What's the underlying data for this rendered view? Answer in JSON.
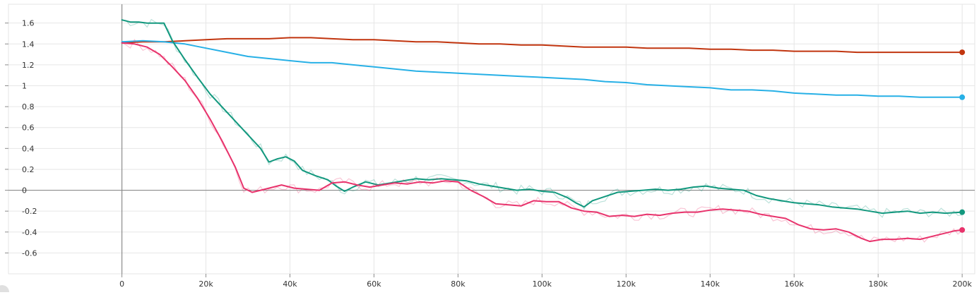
{
  "chart_data": {
    "type": "line",
    "title": "",
    "xlabel": "",
    "ylabel": "",
    "xlim": [
      -27000,
      203000
    ],
    "ylim": [
      -0.8,
      1.78
    ],
    "x_ticks": [
      0,
      20000,
      40000,
      60000,
      80000,
      100000,
      120000,
      140000,
      160000,
      180000,
      200000
    ],
    "x_tick_labels": [
      "0",
      "20k",
      "40k",
      "60k",
      "80k",
      "100k",
      "120k",
      "140k",
      "160k",
      "180k",
      "200k"
    ],
    "y_ticks": [
      1.6,
      1.4,
      1.2,
      1,
      0.8,
      0.6,
      0.4,
      0.2,
      0,
      -0.2,
      -0.4,
      -0.6
    ],
    "y_tick_labels": [
      "1.6",
      "1.4",
      "1.2",
      "1",
      "0.8",
      "0.6",
      "0.4",
      "0.2",
      "0",
      "-0.2",
      "-0.4",
      "-0.6"
    ],
    "grid": true,
    "legend": "none",
    "series": [
      {
        "color": "#c1350f",
        "raw": false,
        "points": [
          [
            0,
            1.41
          ],
          [
            5000,
            1.42
          ],
          [
            10000,
            1.42
          ],
          [
            15000,
            1.43
          ],
          [
            20000,
            1.44
          ],
          [
            25000,
            1.45
          ],
          [
            30000,
            1.45
          ],
          [
            35000,
            1.45
          ],
          [
            40000,
            1.46
          ],
          [
            45000,
            1.46
          ],
          [
            50000,
            1.45
          ],
          [
            55000,
            1.44
          ],
          [
            60000,
            1.44
          ],
          [
            65000,
            1.43
          ],
          [
            70000,
            1.42
          ],
          [
            75000,
            1.42
          ],
          [
            80000,
            1.41
          ],
          [
            85000,
            1.4
          ],
          [
            90000,
            1.4
          ],
          [
            95000,
            1.39
          ],
          [
            100000,
            1.39
          ],
          [
            105000,
            1.38
          ],
          [
            110000,
            1.37
          ],
          [
            115000,
            1.37
          ],
          [
            120000,
            1.37
          ],
          [
            125000,
            1.36
          ],
          [
            130000,
            1.36
          ],
          [
            135000,
            1.36
          ],
          [
            140000,
            1.35
          ],
          [
            145000,
            1.35
          ],
          [
            150000,
            1.34
          ],
          [
            155000,
            1.34
          ],
          [
            160000,
            1.33
          ],
          [
            165000,
            1.33
          ],
          [
            170000,
            1.33
          ],
          [
            175000,
            1.32
          ],
          [
            180000,
            1.32
          ],
          [
            185000,
            1.32
          ],
          [
            190000,
            1.32
          ],
          [
            195000,
            1.32
          ],
          [
            200000,
            1.32
          ]
        ]
      },
      {
        "color": "#27b0e6",
        "raw": false,
        "points": [
          [
            0,
            1.42
          ],
          [
            5000,
            1.43
          ],
          [
            10000,
            1.42
          ],
          [
            15000,
            1.4
          ],
          [
            20000,
            1.36
          ],
          [
            25000,
            1.32
          ],
          [
            30000,
            1.28
          ],
          [
            35000,
            1.26
          ],
          [
            40000,
            1.24
          ],
          [
            45000,
            1.22
          ],
          [
            50000,
            1.22
          ],
          [
            55000,
            1.2
          ],
          [
            60000,
            1.18
          ],
          [
            65000,
            1.16
          ],
          [
            70000,
            1.14
          ],
          [
            75000,
            1.13
          ],
          [
            80000,
            1.12
          ],
          [
            85000,
            1.11
          ],
          [
            90000,
            1.1
          ],
          [
            95000,
            1.09
          ],
          [
            100000,
            1.08
          ],
          [
            105000,
            1.07
          ],
          [
            110000,
            1.06
          ],
          [
            115000,
            1.04
          ],
          [
            120000,
            1.03
          ],
          [
            125000,
            1.01
          ],
          [
            130000,
            1.0
          ],
          [
            135000,
            0.99
          ],
          [
            140000,
            0.98
          ],
          [
            145000,
            0.96
          ],
          [
            150000,
            0.96
          ],
          [
            155000,
            0.95
          ],
          [
            160000,
            0.93
          ],
          [
            165000,
            0.92
          ],
          [
            170000,
            0.91
          ],
          [
            175000,
            0.91
          ],
          [
            180000,
            0.9
          ],
          [
            185000,
            0.9
          ],
          [
            190000,
            0.89
          ],
          [
            195000,
            0.89
          ],
          [
            200000,
            0.89
          ]
        ]
      },
      {
        "color": "#12987e",
        "raw": true,
        "points": [
          [
            0,
            1.63
          ],
          [
            2000,
            1.61
          ],
          [
            4000,
            1.61
          ],
          [
            6000,
            1.6
          ],
          [
            8000,
            1.6
          ],
          [
            10000,
            1.6
          ],
          [
            12000,
            1.43
          ],
          [
            15000,
            1.25
          ],
          [
            18000,
            1.08
          ],
          [
            21000,
            0.92
          ],
          [
            24000,
            0.79
          ],
          [
            27000,
            0.66
          ],
          [
            30000,
            0.53
          ],
          [
            33000,
            0.4
          ],
          [
            35000,
            0.27
          ],
          [
            37000,
            0.3
          ],
          [
            39000,
            0.32
          ],
          [
            41000,
            0.28
          ],
          [
            43000,
            0.19
          ],
          [
            46000,
            0.14
          ],
          [
            49000,
            0.1
          ],
          [
            51000,
            0.04
          ],
          [
            53000,
            -0.01
          ],
          [
            55000,
            0.03
          ],
          [
            58000,
            0.08
          ],
          [
            61000,
            0.05
          ],
          [
            64000,
            0.07
          ],
          [
            67000,
            0.09
          ],
          [
            70000,
            0.11
          ],
          [
            73000,
            0.1
          ],
          [
            76000,
            0.11
          ],
          [
            79000,
            0.1
          ],
          [
            82000,
            0.09
          ],
          [
            85000,
            0.06
          ],
          [
            88000,
            0.04
          ],
          [
            91000,
            0.02
          ],
          [
            94000,
            0.0
          ],
          [
            97000,
            0.01
          ],
          [
            100000,
            -0.01
          ],
          [
            103000,
            -0.02
          ],
          [
            106000,
            -0.07
          ],
          [
            108000,
            -0.12
          ],
          [
            110000,
            -0.16
          ],
          [
            112000,
            -0.1
          ],
          [
            115000,
            -0.06
          ],
          [
            118000,
            -0.02
          ],
          [
            121000,
            -0.01
          ],
          [
            124000,
            0.0
          ],
          [
            127000,
            0.01
          ],
          [
            130000,
            0.0
          ],
          [
            133000,
            0.01
          ],
          [
            136000,
            0.03
          ],
          [
            139000,
            0.04
          ],
          [
            142000,
            0.02
          ],
          [
            145000,
            0.01
          ],
          [
            148000,
            0.0
          ],
          [
            151000,
            -0.05
          ],
          [
            154000,
            -0.08
          ],
          [
            157000,
            -0.1
          ],
          [
            160000,
            -0.12
          ],
          [
            163000,
            -0.13
          ],
          [
            166000,
            -0.14
          ],
          [
            169000,
            -0.16
          ],
          [
            172000,
            -0.17
          ],
          [
            175000,
            -0.18
          ],
          [
            178000,
            -0.2
          ],
          [
            181000,
            -0.22
          ],
          [
            184000,
            -0.21
          ],
          [
            187000,
            -0.2
          ],
          [
            190000,
            -0.22
          ],
          [
            193000,
            -0.21
          ],
          [
            196000,
            -0.22
          ],
          [
            200000,
            -0.21
          ]
        ]
      },
      {
        "color": "#e8336c",
        "raw": true,
        "points": [
          [
            0,
            1.41
          ],
          [
            3000,
            1.4
          ],
          [
            6000,
            1.37
          ],
          [
            9000,
            1.3
          ],
          [
            12000,
            1.18
          ],
          [
            15000,
            1.05
          ],
          [
            18000,
            0.88
          ],
          [
            21000,
            0.68
          ],
          [
            24000,
            0.46
          ],
          [
            27000,
            0.22
          ],
          [
            29000,
            0.02
          ],
          [
            31000,
            -0.02
          ],
          [
            33000,
            0.0
          ],
          [
            35000,
            0.02
          ],
          [
            38000,
            0.05
          ],
          [
            41000,
            0.02
          ],
          [
            44000,
            0.01
          ],
          [
            47000,
            0.0
          ],
          [
            50000,
            0.07
          ],
          [
            53000,
            0.08
          ],
          [
            56000,
            0.05
          ],
          [
            59000,
            0.03
          ],
          [
            62000,
            0.05
          ],
          [
            65000,
            0.07
          ],
          [
            68000,
            0.06
          ],
          [
            71000,
            0.08
          ],
          [
            74000,
            0.07
          ],
          [
            77000,
            0.09
          ],
          [
            80000,
            0.08
          ],
          [
            83000,
            0.0
          ],
          [
            86000,
            -0.06
          ],
          [
            89000,
            -0.13
          ],
          [
            92000,
            -0.14
          ],
          [
            95000,
            -0.15
          ],
          [
            98000,
            -0.1
          ],
          [
            101000,
            -0.11
          ],
          [
            104000,
            -0.11
          ],
          [
            107000,
            -0.17
          ],
          [
            110000,
            -0.2
          ],
          [
            113000,
            -0.21
          ],
          [
            116000,
            -0.25
          ],
          [
            119000,
            -0.24
          ],
          [
            122000,
            -0.25
          ],
          [
            125000,
            -0.23
          ],
          [
            128000,
            -0.24
          ],
          [
            131000,
            -0.22
          ],
          [
            134000,
            -0.21
          ],
          [
            137000,
            -0.21
          ],
          [
            140000,
            -0.19
          ],
          [
            143000,
            -0.18
          ],
          [
            146000,
            -0.19
          ],
          [
            149000,
            -0.2
          ],
          [
            152000,
            -0.23
          ],
          [
            155000,
            -0.25
          ],
          [
            158000,
            -0.27
          ],
          [
            161000,
            -0.33
          ],
          [
            164000,
            -0.37
          ],
          [
            167000,
            -0.38
          ],
          [
            170000,
            -0.37
          ],
          [
            173000,
            -0.4
          ],
          [
            176000,
            -0.46
          ],
          [
            178000,
            -0.49
          ],
          [
            181000,
            -0.47
          ],
          [
            184000,
            -0.47
          ],
          [
            187000,
            -0.46
          ],
          [
            190000,
            -0.47
          ],
          [
            193000,
            -0.44
          ],
          [
            196000,
            -0.41
          ],
          [
            198000,
            -0.39
          ],
          [
            200000,
            -0.38
          ]
        ]
      }
    ]
  }
}
